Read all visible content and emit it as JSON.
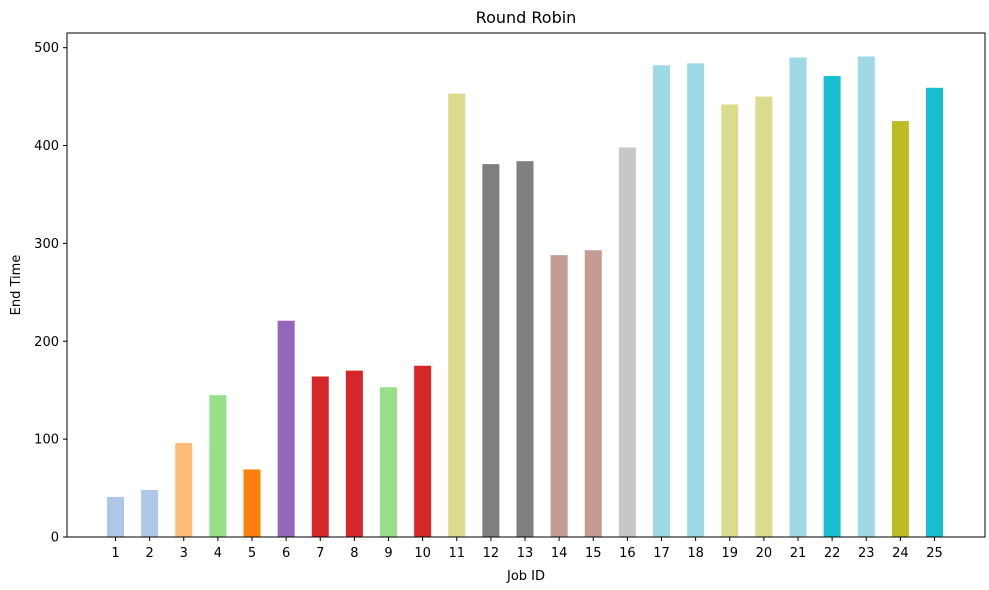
{
  "chart_data": {
    "type": "bar",
    "title": "Round Robin",
    "xlabel": "Job ID",
    "ylabel": "End Time",
    "categories": [
      "1",
      "2",
      "3",
      "4",
      "5",
      "6",
      "7",
      "8",
      "9",
      "10",
      "11",
      "12",
      "13",
      "14",
      "15",
      "16",
      "17",
      "18",
      "19",
      "20",
      "21",
      "22",
      "23",
      "24",
      "25"
    ],
    "values": [
      41,
      48,
      96,
      145,
      69,
      221,
      164,
      170,
      153,
      175,
      453,
      381,
      384,
      288,
      293,
      398,
      482,
      484,
      442,
      450,
      490,
      471,
      491,
      425,
      459
    ],
    "colors": [
      "#aec7e8",
      "#aec7e8",
      "#ffbb78",
      "#98df8a",
      "#ff7f0e",
      "#9467bd",
      "#d62728",
      "#d62728",
      "#98df8a",
      "#d62728",
      "#dbdb8d",
      "#7f7f7f",
      "#7f7f7f",
      "#c49c94",
      "#c49c94",
      "#c7c7c7",
      "#9edae5",
      "#9edae5",
      "#dbdb8d",
      "#dbdb8d",
      "#9edae5",
      "#17becf",
      "#9edae5",
      "#bcbd22",
      "#17becf"
    ],
    "ylim": [
      0,
      515
    ],
    "yticks": [
      0,
      100,
      200,
      300,
      400,
      500
    ],
    "grid": false,
    "legend": false
  }
}
